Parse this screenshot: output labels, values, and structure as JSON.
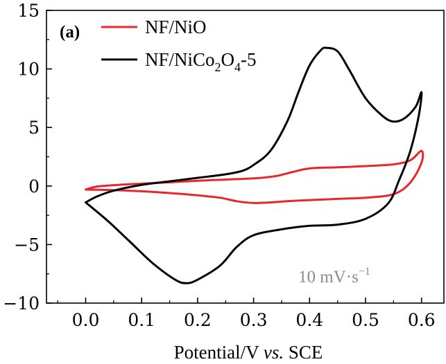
{
  "chart_data": {
    "type": "line",
    "panel_label": "(a)",
    "xlabel": {
      "prefix": "Potential/V ",
      "italic": "vs.",
      "suffix": " SCE"
    },
    "ylabel": "",
    "xlim": [
      -0.07,
      0.64
    ],
    "ylim": [
      -10,
      15
    ],
    "x_ticks": [
      0.0,
      0.1,
      0.2,
      0.3,
      0.4,
      0.5,
      0.6
    ],
    "x_tick_labels": [
      "0.0",
      "0.1",
      "0.2",
      "0.3",
      "0.4",
      "0.5",
      "0.6"
    ],
    "y_ticks": [
      -10,
      -5,
      0,
      5,
      10,
      15
    ],
    "y_tick_labels": [
      "−10",
      "−5",
      "0",
      "5",
      "10",
      "15"
    ],
    "legend_position": "top-left",
    "grid": false,
    "annotation": {
      "base": "10 mV·s",
      "sup": "−1"
    },
    "series": [
      {
        "name": "NF/NiO",
        "name_parts": {
          "base": "NF/NiO"
        },
        "color": "#e8262c",
        "points": [
          [
            0.0,
            -0.3
          ],
          [
            0.02,
            -0.05
          ],
          [
            0.06,
            0.1
          ],
          [
            0.1,
            0.2
          ],
          [
            0.15,
            0.32
          ],
          [
            0.2,
            0.45
          ],
          [
            0.25,
            0.55
          ],
          [
            0.3,
            0.65
          ],
          [
            0.34,
            0.85
          ],
          [
            0.37,
            1.2
          ],
          [
            0.4,
            1.5
          ],
          [
            0.45,
            1.6
          ],
          [
            0.5,
            1.7
          ],
          [
            0.55,
            1.85
          ],
          [
            0.58,
            2.2
          ],
          [
            0.6,
            3.0
          ],
          [
            0.6,
            2.0
          ],
          [
            0.58,
            0.3
          ],
          [
            0.55,
            -0.7
          ],
          [
            0.5,
            -1.0
          ],
          [
            0.45,
            -1.1
          ],
          [
            0.4,
            -1.2
          ],
          [
            0.36,
            -1.3
          ],
          [
            0.33,
            -1.4
          ],
          [
            0.3,
            -1.45
          ],
          [
            0.27,
            -1.3
          ],
          [
            0.24,
            -1.0
          ],
          [
            0.2,
            -0.8
          ],
          [
            0.15,
            -0.6
          ],
          [
            0.1,
            -0.45
          ],
          [
            0.05,
            -0.35
          ],
          [
            0.0,
            -0.3
          ]
        ]
      },
      {
        "name": "NF/NiCo2O4-5",
        "name_parts": {
          "base": "NF/NiCo",
          "sub1": "2",
          "mid": "O",
          "sub2": "4",
          "suffix": "-5"
        },
        "color": "#000000",
        "points": [
          [
            0.0,
            -1.4
          ],
          [
            0.02,
            -0.9
          ],
          [
            0.05,
            -0.4
          ],
          [
            0.1,
            0.1
          ],
          [
            0.15,
            0.4
          ],
          [
            0.2,
            0.7
          ],
          [
            0.25,
            1.0
          ],
          [
            0.28,
            1.3
          ],
          [
            0.3,
            1.8
          ],
          [
            0.33,
            3.0
          ],
          [
            0.36,
            5.5
          ],
          [
            0.38,
            8.0
          ],
          [
            0.4,
            10.3
          ],
          [
            0.42,
            11.6
          ],
          [
            0.43,
            11.8
          ],
          [
            0.45,
            11.5
          ],
          [
            0.47,
            10.0
          ],
          [
            0.5,
            7.5
          ],
          [
            0.53,
            6.0
          ],
          [
            0.55,
            5.5
          ],
          [
            0.57,
            5.8
          ],
          [
            0.59,
            6.8
          ],
          [
            0.6,
            8.0
          ],
          [
            0.595,
            6.0
          ],
          [
            0.58,
            3.0
          ],
          [
            0.56,
            0.5
          ],
          [
            0.54,
            -1.5
          ],
          [
            0.5,
            -2.8
          ],
          [
            0.45,
            -3.3
          ],
          [
            0.4,
            -3.4
          ],
          [
            0.35,
            -3.7
          ],
          [
            0.3,
            -4.2
          ],
          [
            0.27,
            -5.2
          ],
          [
            0.24,
            -6.8
          ],
          [
            0.2,
            -8.0
          ],
          [
            0.18,
            -8.3
          ],
          [
            0.16,
            -8.0
          ],
          [
            0.12,
            -6.6
          ],
          [
            0.08,
            -4.8
          ],
          [
            0.04,
            -3.0
          ],
          [
            0.0,
            -1.4
          ]
        ]
      }
    ]
  }
}
